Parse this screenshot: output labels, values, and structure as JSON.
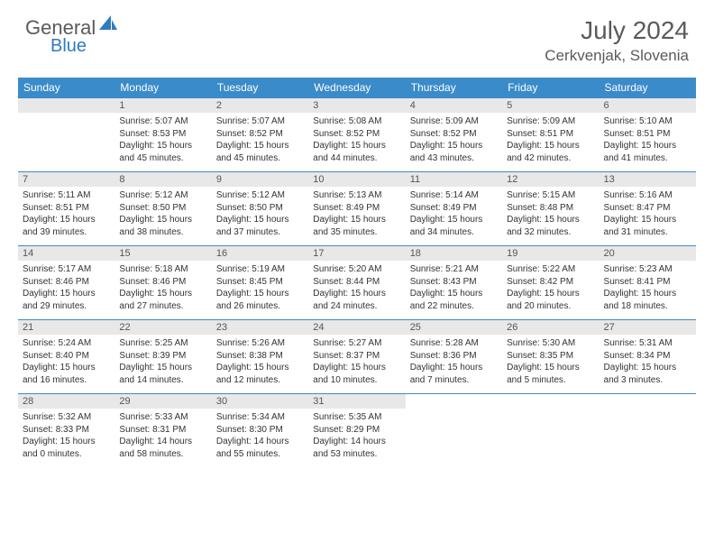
{
  "logo": {
    "general": "General",
    "blue": "Blue"
  },
  "title": "July 2024",
  "location": "Cerkvenjak, Slovenia",
  "colors": {
    "header_bg": "#3a8bc9",
    "header_fg": "#ffffff",
    "daynum_bg": "#e8e8e8",
    "text": "#333333",
    "rule": "#3a8bc9",
    "logo_gray": "#5a5a5a",
    "logo_blue": "#2f7bbf"
  },
  "weekdays": [
    "Sunday",
    "Monday",
    "Tuesday",
    "Wednesday",
    "Thursday",
    "Friday",
    "Saturday"
  ],
  "start_offset": 1,
  "days": [
    {
      "n": 1,
      "sr": "5:07 AM",
      "ss": "8:53 PM",
      "dl": "15 hours and 45 minutes."
    },
    {
      "n": 2,
      "sr": "5:07 AM",
      "ss": "8:52 PM",
      "dl": "15 hours and 45 minutes."
    },
    {
      "n": 3,
      "sr": "5:08 AM",
      "ss": "8:52 PM",
      "dl": "15 hours and 44 minutes."
    },
    {
      "n": 4,
      "sr": "5:09 AM",
      "ss": "8:52 PM",
      "dl": "15 hours and 43 minutes."
    },
    {
      "n": 5,
      "sr": "5:09 AM",
      "ss": "8:51 PM",
      "dl": "15 hours and 42 minutes."
    },
    {
      "n": 6,
      "sr": "5:10 AM",
      "ss": "8:51 PM",
      "dl": "15 hours and 41 minutes."
    },
    {
      "n": 7,
      "sr": "5:11 AM",
      "ss": "8:51 PM",
      "dl": "15 hours and 39 minutes."
    },
    {
      "n": 8,
      "sr": "5:12 AM",
      "ss": "8:50 PM",
      "dl": "15 hours and 38 minutes."
    },
    {
      "n": 9,
      "sr": "5:12 AM",
      "ss": "8:50 PM",
      "dl": "15 hours and 37 minutes."
    },
    {
      "n": 10,
      "sr": "5:13 AM",
      "ss": "8:49 PM",
      "dl": "15 hours and 35 minutes."
    },
    {
      "n": 11,
      "sr": "5:14 AM",
      "ss": "8:49 PM",
      "dl": "15 hours and 34 minutes."
    },
    {
      "n": 12,
      "sr": "5:15 AM",
      "ss": "8:48 PM",
      "dl": "15 hours and 32 minutes."
    },
    {
      "n": 13,
      "sr": "5:16 AM",
      "ss": "8:47 PM",
      "dl": "15 hours and 31 minutes."
    },
    {
      "n": 14,
      "sr": "5:17 AM",
      "ss": "8:46 PM",
      "dl": "15 hours and 29 minutes."
    },
    {
      "n": 15,
      "sr": "5:18 AM",
      "ss": "8:46 PM",
      "dl": "15 hours and 27 minutes."
    },
    {
      "n": 16,
      "sr": "5:19 AM",
      "ss": "8:45 PM",
      "dl": "15 hours and 26 minutes."
    },
    {
      "n": 17,
      "sr": "5:20 AM",
      "ss": "8:44 PM",
      "dl": "15 hours and 24 minutes."
    },
    {
      "n": 18,
      "sr": "5:21 AM",
      "ss": "8:43 PM",
      "dl": "15 hours and 22 minutes."
    },
    {
      "n": 19,
      "sr": "5:22 AM",
      "ss": "8:42 PM",
      "dl": "15 hours and 20 minutes."
    },
    {
      "n": 20,
      "sr": "5:23 AM",
      "ss": "8:41 PM",
      "dl": "15 hours and 18 minutes."
    },
    {
      "n": 21,
      "sr": "5:24 AM",
      "ss": "8:40 PM",
      "dl": "15 hours and 16 minutes."
    },
    {
      "n": 22,
      "sr": "5:25 AM",
      "ss": "8:39 PM",
      "dl": "15 hours and 14 minutes."
    },
    {
      "n": 23,
      "sr": "5:26 AM",
      "ss": "8:38 PM",
      "dl": "15 hours and 12 minutes."
    },
    {
      "n": 24,
      "sr": "5:27 AM",
      "ss": "8:37 PM",
      "dl": "15 hours and 10 minutes."
    },
    {
      "n": 25,
      "sr": "5:28 AM",
      "ss": "8:36 PM",
      "dl": "15 hours and 7 minutes."
    },
    {
      "n": 26,
      "sr": "5:30 AM",
      "ss": "8:35 PM",
      "dl": "15 hours and 5 minutes."
    },
    {
      "n": 27,
      "sr": "5:31 AM",
      "ss": "8:34 PM",
      "dl": "15 hours and 3 minutes."
    },
    {
      "n": 28,
      "sr": "5:32 AM",
      "ss": "8:33 PM",
      "dl": "15 hours and 0 minutes."
    },
    {
      "n": 29,
      "sr": "5:33 AM",
      "ss": "8:31 PM",
      "dl": "14 hours and 58 minutes."
    },
    {
      "n": 30,
      "sr": "5:34 AM",
      "ss": "8:30 PM",
      "dl": "14 hours and 55 minutes."
    },
    {
      "n": 31,
      "sr": "5:35 AM",
      "ss": "8:29 PM",
      "dl": "14 hours and 53 minutes."
    }
  ],
  "labels": {
    "sunrise": "Sunrise:",
    "sunset": "Sunset:",
    "daylight": "Daylight:"
  }
}
